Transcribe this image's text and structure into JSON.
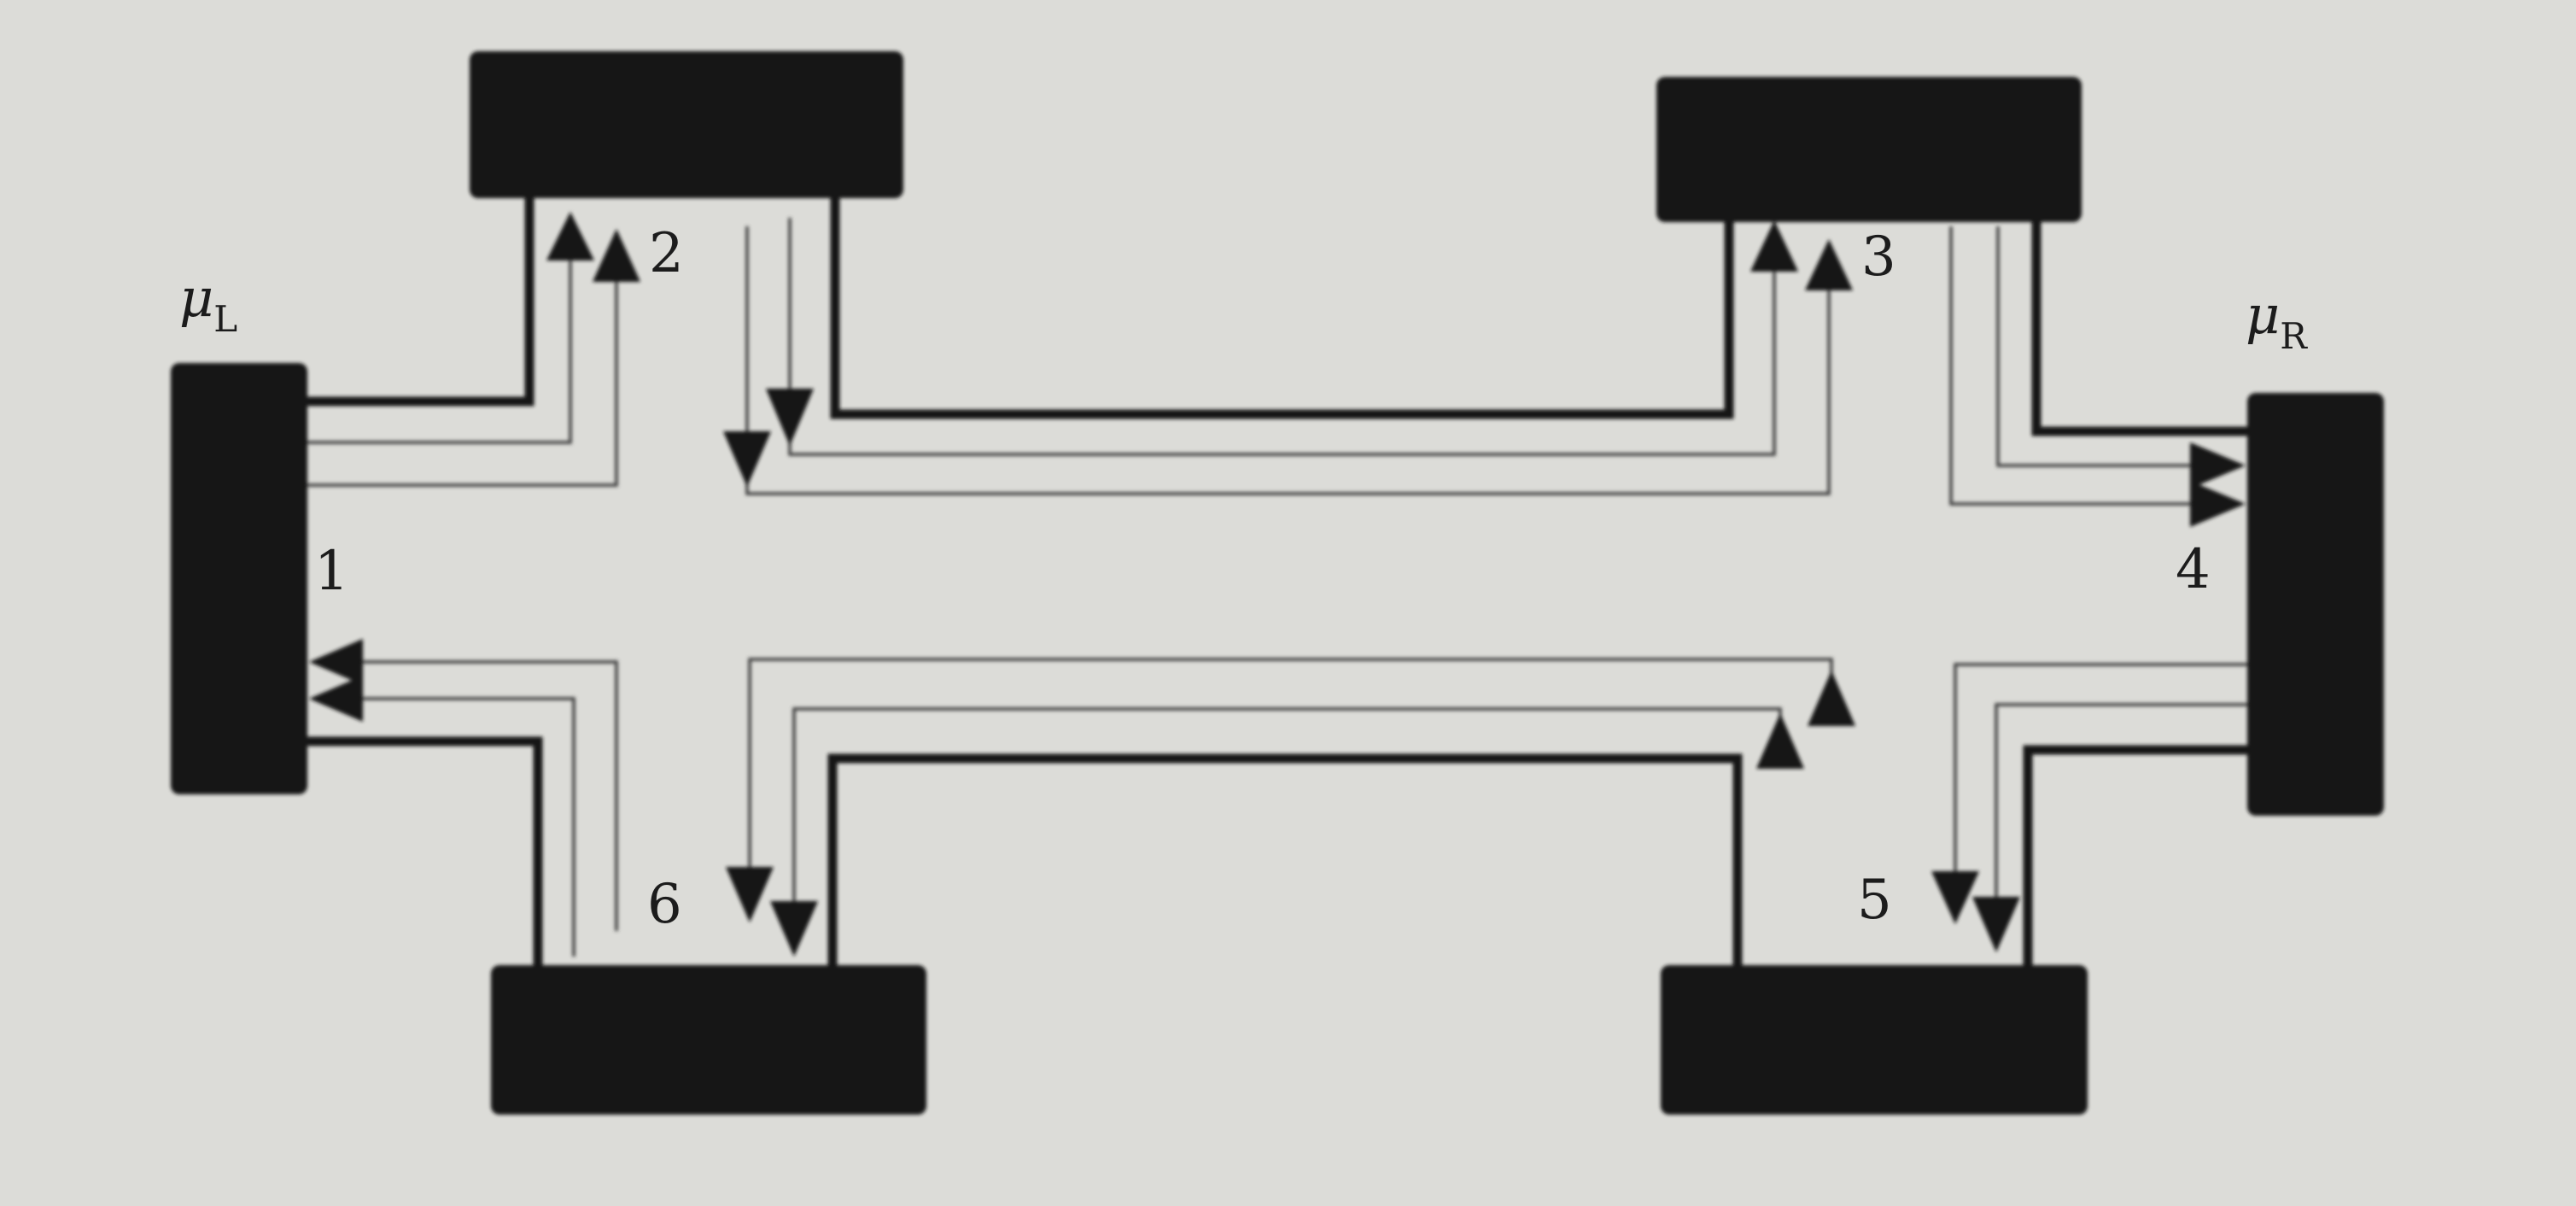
{
  "diagram": {
    "contact_labels": {
      "c1": "1",
      "c2": "2",
      "c3": "3",
      "c4": "4",
      "c5": "5",
      "c6": "6"
    },
    "potentials": {
      "left": {
        "symbol": "μ",
        "subscript": "L"
      },
      "right": {
        "symbol": "μ",
        "subscript": "R"
      }
    }
  }
}
